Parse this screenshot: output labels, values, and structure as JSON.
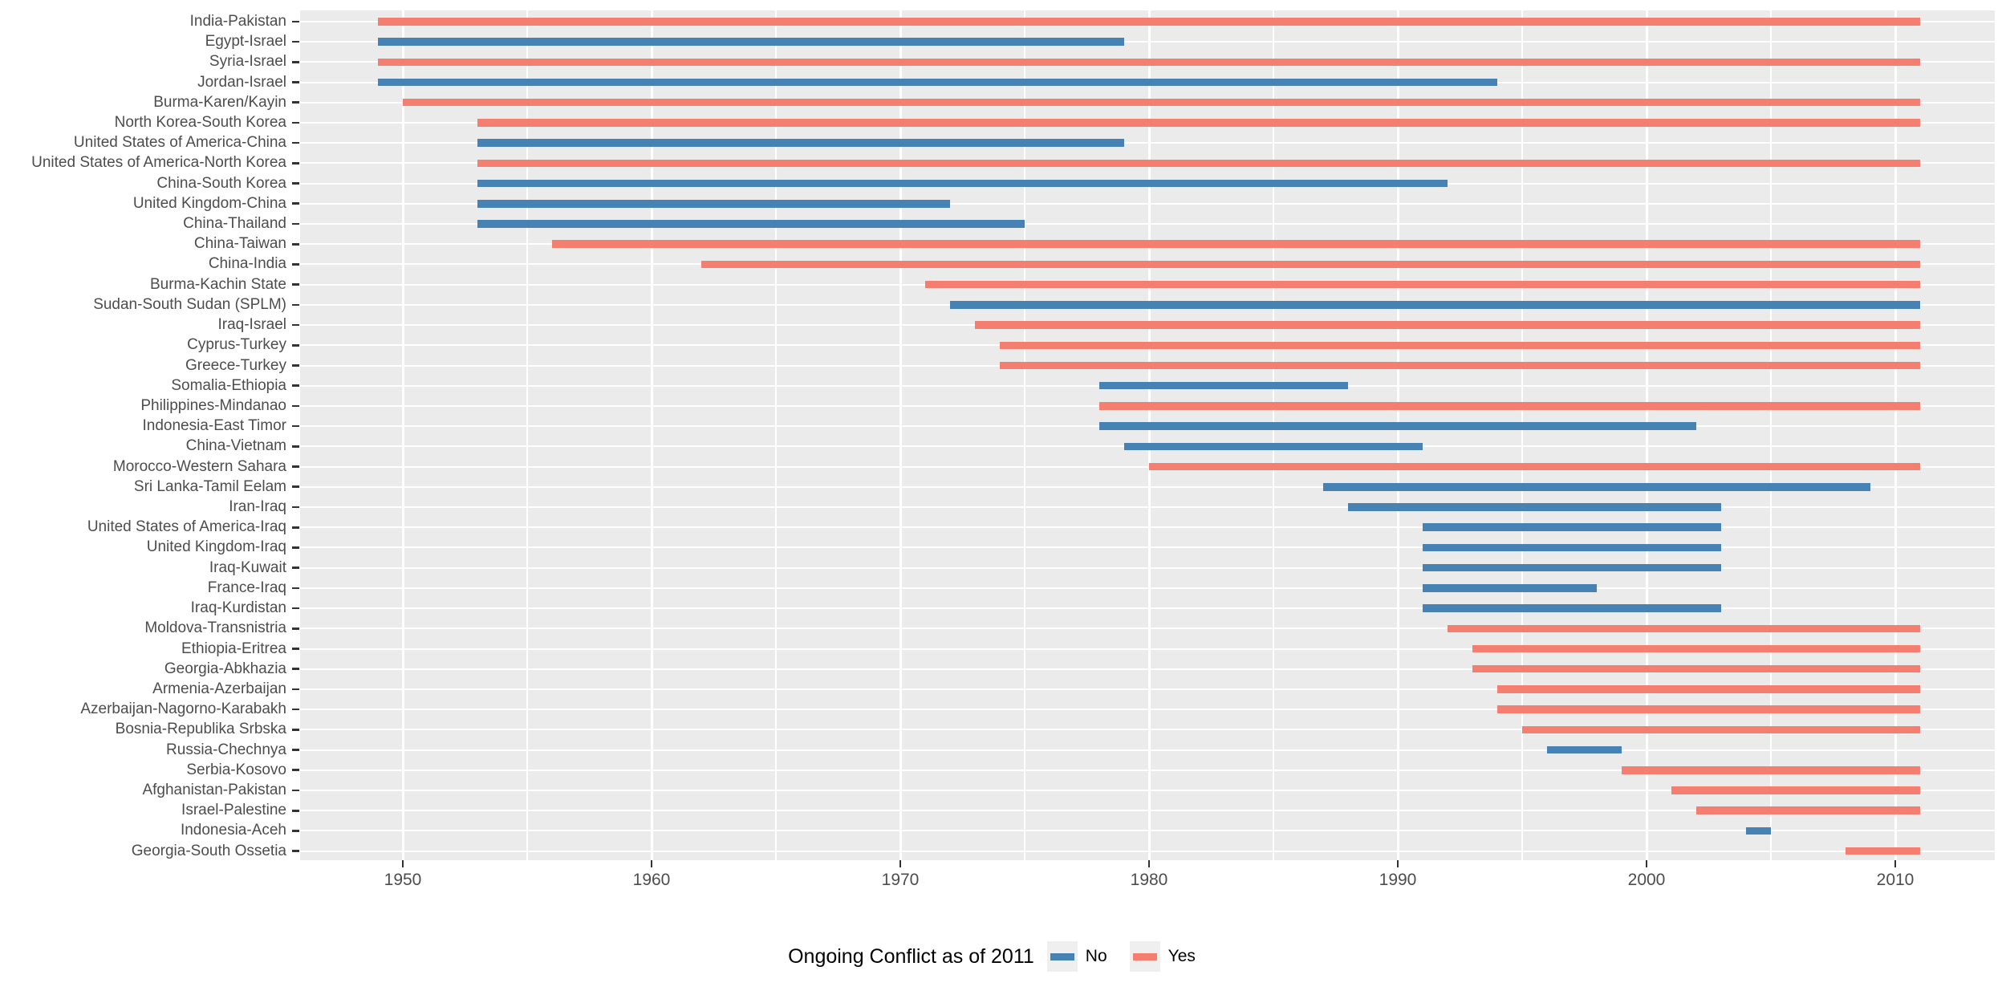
{
  "chart_data": {
    "type": "bar",
    "subtype": "gantt-range",
    "title": "",
    "xlabel": "",
    "ylabel": "",
    "x_axis": {
      "major_ticks": [
        1950,
        1960,
        1970,
        1980,
        1990,
        2000,
        2010
      ],
      "minor_gridlines": [
        1955,
        1965,
        1975,
        1985,
        1995,
        2005
      ],
      "xlim": [
        1945.9,
        2014.1
      ]
    },
    "grid": "on",
    "legend": {
      "position": "bottom-center",
      "title": "Ongoing Conflict as of 2011",
      "entries": [
        {
          "label": "No",
          "color": "#4682B4"
        },
        {
          "label": "Yes",
          "color": "#F47E6F"
        }
      ]
    },
    "colors": {
      "panel_background": "#EBEBEB",
      "gridline": "#FFFFFF",
      "axis_text": "#4D4D4D",
      "tick_mark": "#333333",
      "legend_key_background": "#EFEFEF",
      "ongoing_no": "#4682B4",
      "ongoing_yes": "#F47E6F"
    },
    "rows": [
      {
        "label": "India-Pakistan",
        "start": 1949,
        "end": 2011,
        "ongoing": "Yes"
      },
      {
        "label": "Egypt-Israel",
        "start": 1949,
        "end": 1979,
        "ongoing": "No"
      },
      {
        "label": "Syria-Israel",
        "start": 1949,
        "end": 2011,
        "ongoing": "Yes"
      },
      {
        "label": "Jordan-Israel",
        "start": 1949,
        "end": 1994,
        "ongoing": "No"
      },
      {
        "label": "Burma-Karen/Kayin",
        "start": 1950,
        "end": 2011,
        "ongoing": "Yes"
      },
      {
        "label": "North Korea-South Korea",
        "start": 1953,
        "end": 2011,
        "ongoing": "Yes"
      },
      {
        "label": "United States of America-China",
        "start": 1953,
        "end": 1979,
        "ongoing": "No"
      },
      {
        "label": "United States of America-North Korea",
        "start": 1953,
        "end": 2011,
        "ongoing": "Yes"
      },
      {
        "label": "China-South Korea",
        "start": 1953,
        "end": 1992,
        "ongoing": "No"
      },
      {
        "label": "United Kingdom-China",
        "start": 1953,
        "end": 1972,
        "ongoing": "No"
      },
      {
        "label": "China-Thailand",
        "start": 1953,
        "end": 1975,
        "ongoing": "No"
      },
      {
        "label": "China-Taiwan",
        "start": 1956,
        "end": 2011,
        "ongoing": "Yes"
      },
      {
        "label": "China-India",
        "start": 1962,
        "end": 2011,
        "ongoing": "Yes"
      },
      {
        "label": "Burma-Kachin State",
        "start": 1971,
        "end": 2011,
        "ongoing": "Yes"
      },
      {
        "label": "Sudan-South Sudan (SPLM)",
        "start": 1972,
        "end": 2011,
        "ongoing": "No"
      },
      {
        "label": "Iraq-Israel",
        "start": 1973,
        "end": 2011,
        "ongoing": "Yes"
      },
      {
        "label": "Cyprus-Turkey",
        "start": 1974,
        "end": 2011,
        "ongoing": "Yes"
      },
      {
        "label": "Greece-Turkey",
        "start": 1974,
        "end": 2011,
        "ongoing": "Yes"
      },
      {
        "label": "Somalia-Ethiopia",
        "start": 1978,
        "end": 1988,
        "ongoing": "No"
      },
      {
        "label": "Philippines-Mindanao",
        "start": 1978,
        "end": 2011,
        "ongoing": "Yes"
      },
      {
        "label": "Indonesia-East Timor",
        "start": 1978,
        "end": 2002,
        "ongoing": "No"
      },
      {
        "label": "China-Vietnam",
        "start": 1979,
        "end": 1991,
        "ongoing": "No"
      },
      {
        "label": "Morocco-Western Sahara",
        "start": 1980,
        "end": 2011,
        "ongoing": "Yes"
      },
      {
        "label": "Sri Lanka-Tamil Eelam",
        "start": 1987,
        "end": 2009,
        "ongoing": "No"
      },
      {
        "label": "Iran-Iraq",
        "start": 1988,
        "end": 2003,
        "ongoing": "No"
      },
      {
        "label": "United States of America-Iraq",
        "start": 1991,
        "end": 2003,
        "ongoing": "No"
      },
      {
        "label": "United Kingdom-Iraq",
        "start": 1991,
        "end": 2003,
        "ongoing": "No"
      },
      {
        "label": "Iraq-Kuwait",
        "start": 1991,
        "end": 2003,
        "ongoing": "No"
      },
      {
        "label": "France-Iraq",
        "start": 1991,
        "end": 1998,
        "ongoing": "No"
      },
      {
        "label": "Iraq-Kurdistan",
        "start": 1991,
        "end": 2003,
        "ongoing": "No"
      },
      {
        "label": "Moldova-Transnistria",
        "start": 1992,
        "end": 2011,
        "ongoing": "Yes"
      },
      {
        "label": "Ethiopia-Eritrea",
        "start": 1993,
        "end": 2011,
        "ongoing": "Yes"
      },
      {
        "label": "Georgia-Abkhazia",
        "start": 1993,
        "end": 2011,
        "ongoing": "Yes"
      },
      {
        "label": "Armenia-Azerbaijan",
        "start": 1994,
        "end": 2011,
        "ongoing": "Yes"
      },
      {
        "label": "Azerbaijan-Nagorno-Karabakh",
        "start": 1994,
        "end": 2011,
        "ongoing": "Yes"
      },
      {
        "label": "Bosnia-Republika Srbska",
        "start": 1995,
        "end": 2011,
        "ongoing": "Yes"
      },
      {
        "label": "Russia-Chechnya",
        "start": 1996,
        "end": 1999,
        "ongoing": "No"
      },
      {
        "label": "Serbia-Kosovo",
        "start": 1999,
        "end": 2011,
        "ongoing": "Yes"
      },
      {
        "label": "Afghanistan-Pakistan",
        "start": 2001,
        "end": 2011,
        "ongoing": "Yes"
      },
      {
        "label": "Israel-Palestine",
        "start": 2002,
        "end": 2011,
        "ongoing": "Yes"
      },
      {
        "label": "Indonesia-Aceh",
        "start": 2004,
        "end": 2005,
        "ongoing": "No"
      },
      {
        "label": "Georgia-South Ossetia",
        "start": 2008,
        "end": 2011,
        "ongoing": "Yes"
      }
    ]
  }
}
